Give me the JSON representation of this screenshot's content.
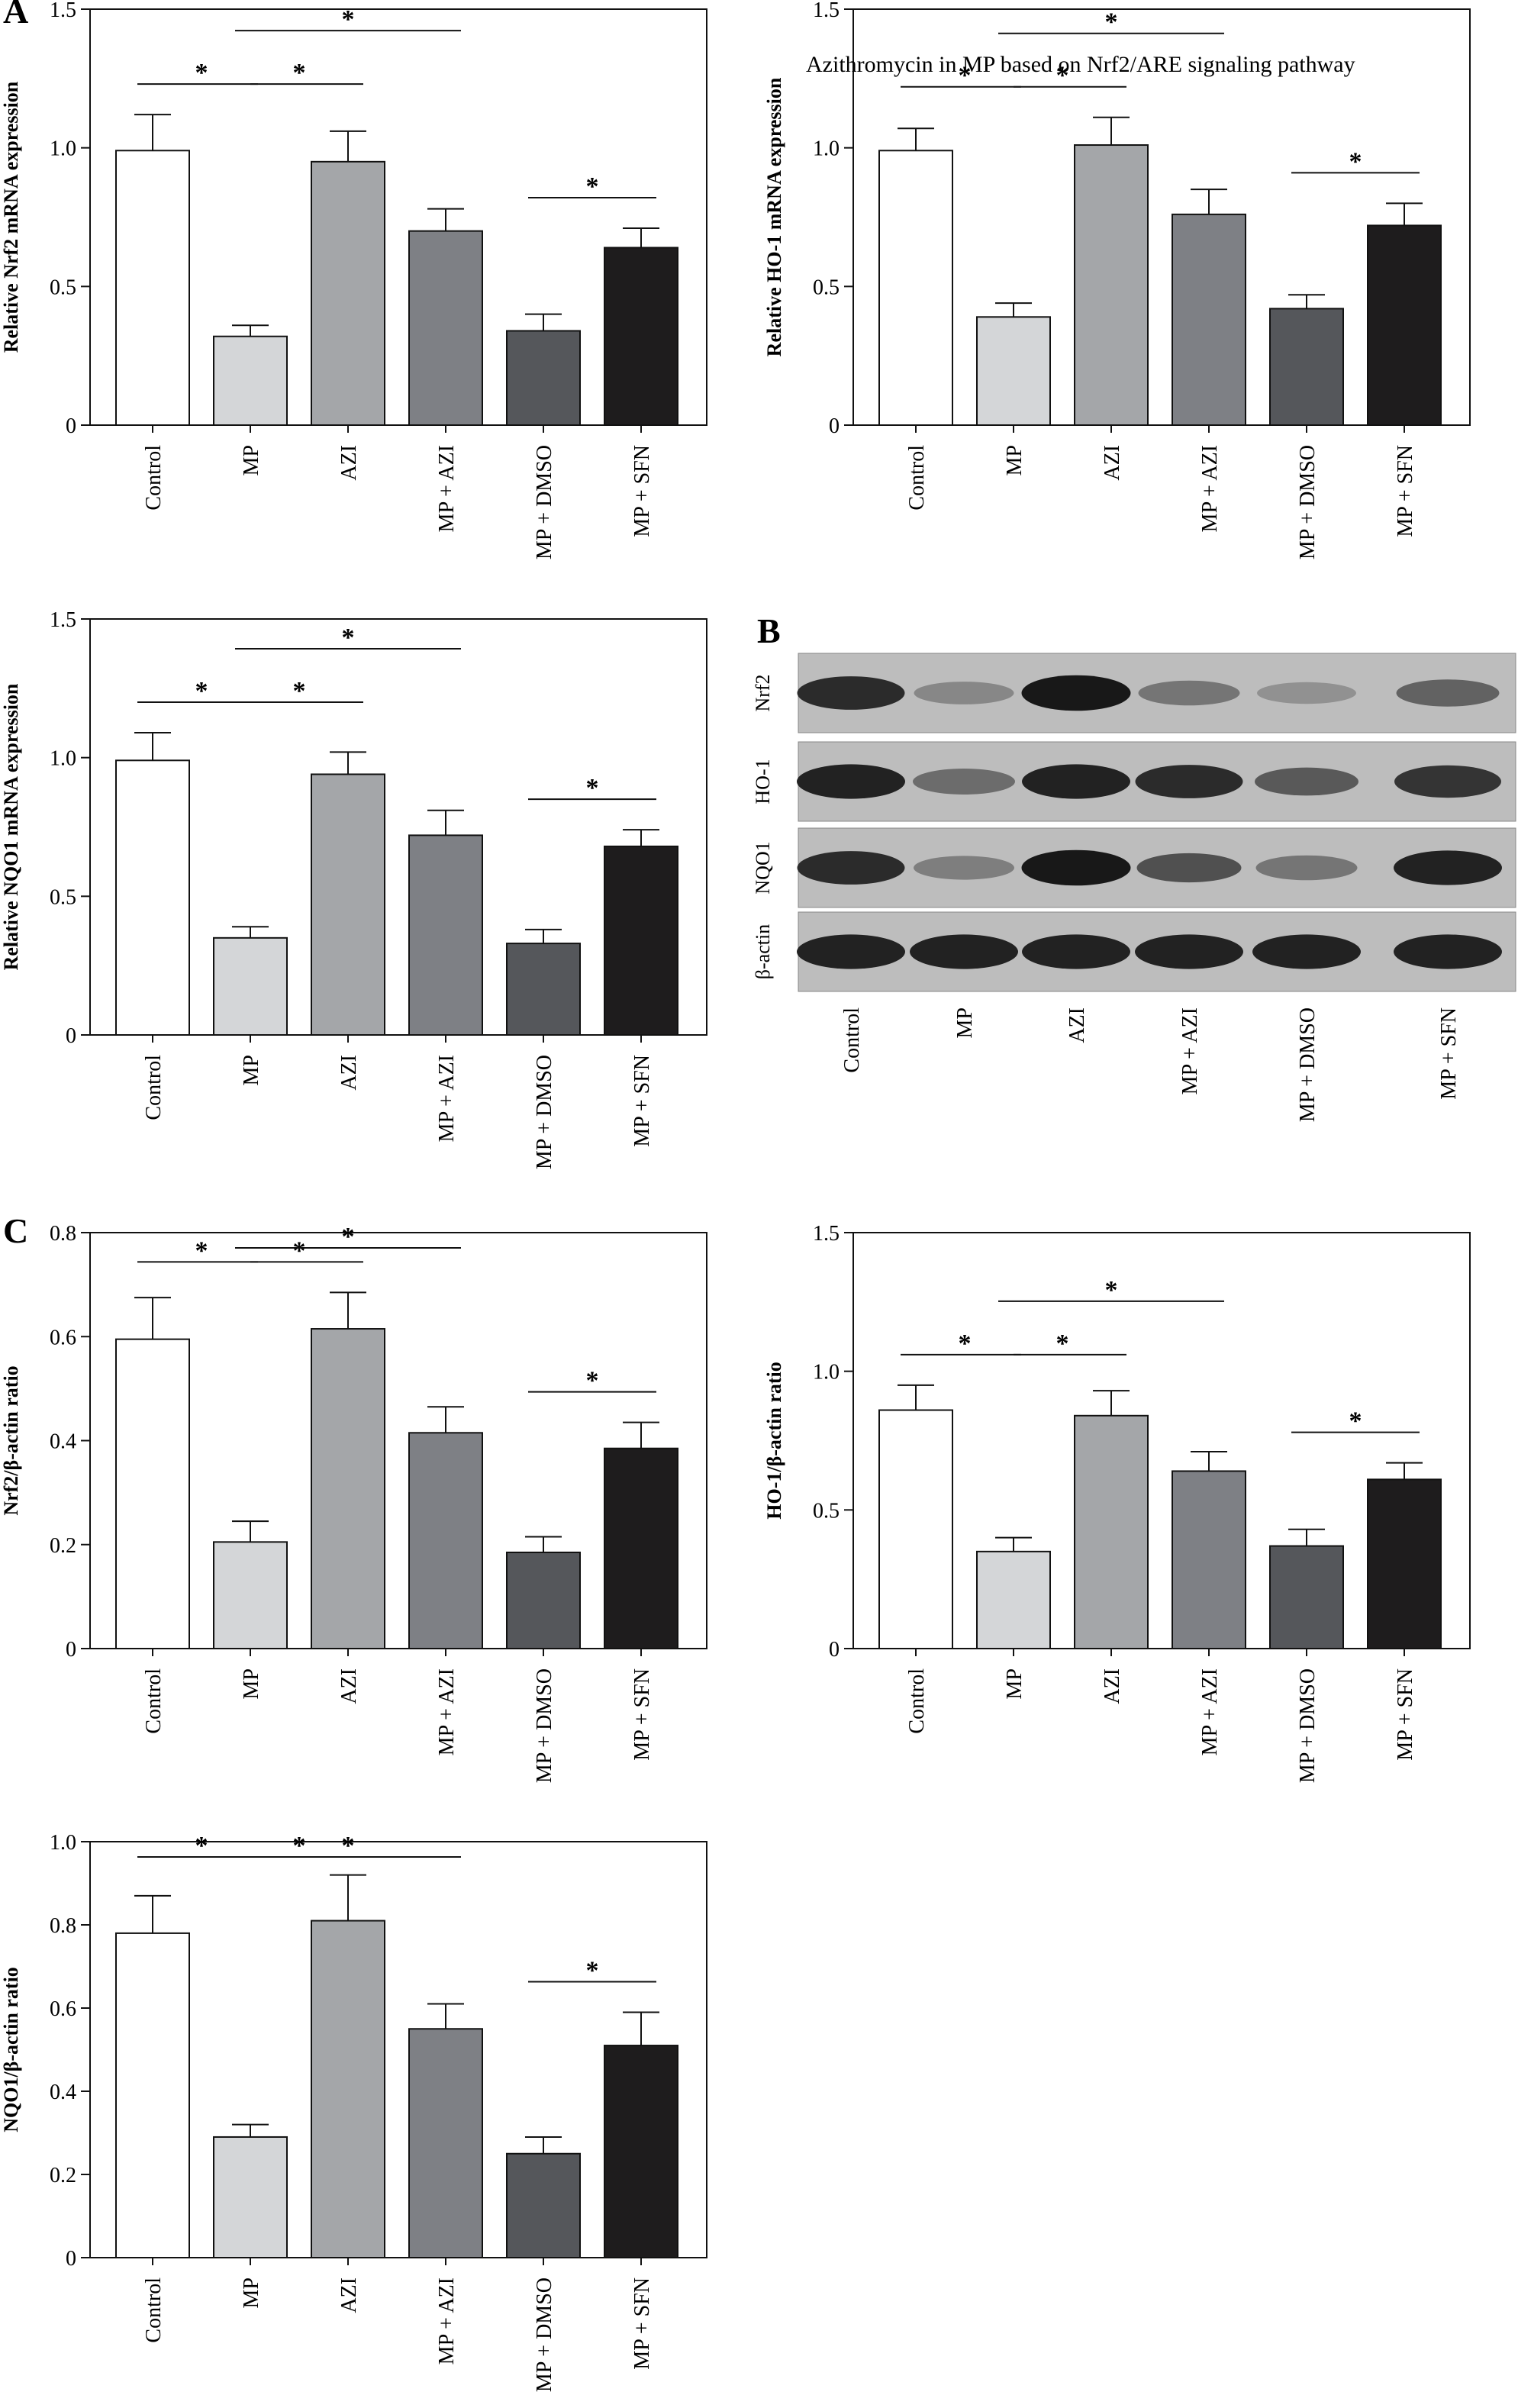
{
  "header_text": "Azithromycin in MP based on Nrf2/ARE signaling pathway",
  "panel_letters": [
    "A",
    "B",
    "C"
  ],
  "categories": [
    "Control",
    "MP",
    "AZI",
    "MP + AZI",
    "MP + DMSO",
    "MP + SFN"
  ],
  "bar_colors": [
    "#ffffff",
    "#d4d6d8",
    "#a4a6a9",
    "#7e8085",
    "#55575b",
    "#1e1c1d"
  ],
  "significance_marker": "*",
  "chart_data": [
    {
      "type": "bar",
      "panel": "A",
      "ylabel": "Relative Nrf2 mRNA expression",
      "ylim": [
        0,
        1.5
      ],
      "yticks": [
        "0",
        "0.5",
        "1.0",
        "1.5"
      ],
      "categories": [
        "Control",
        "MP",
        "AZI",
        "MP + AZI",
        "MP + DMSO",
        "MP + SFN"
      ],
      "values": [
        0.99,
        0.32,
        0.95,
        0.7,
        0.34,
        0.64
      ],
      "errors": [
        0.13,
        0.04,
        0.11,
        0.08,
        0.06,
        0.07
      ],
      "comparisons": [
        {
          "groups": [
            "Control",
            "MP"
          ],
          "label": "*"
        },
        {
          "groups": [
            "MP",
            "AZI"
          ],
          "label": "*"
        },
        {
          "groups": [
            "MP",
            "MP + AZI"
          ],
          "label": "*"
        },
        {
          "groups": [
            "MP + DMSO",
            "MP + SFN"
          ],
          "label": "*"
        }
      ]
    },
    {
      "type": "bar",
      "panel": "A",
      "ylabel": "Relative HO-1 mRNA expression",
      "ylim": [
        0,
        1.5
      ],
      "yticks": [
        "0",
        "0.5",
        "1.0",
        "1.5"
      ],
      "categories": [
        "Control",
        "MP",
        "AZI",
        "MP + AZI",
        "MP + DMSO",
        "MP + SFN"
      ],
      "values": [
        0.99,
        0.39,
        1.01,
        0.76,
        0.42,
        0.72
      ],
      "errors": [
        0.08,
        0.05,
        0.1,
        0.09,
        0.05,
        0.08
      ],
      "comparisons": [
        {
          "groups": [
            "Control",
            "MP"
          ],
          "label": "*"
        },
        {
          "groups": [
            "MP",
            "AZI"
          ],
          "label": "*"
        },
        {
          "groups": [
            "MP",
            "MP + AZI"
          ],
          "label": "*"
        },
        {
          "groups": [
            "MP + DMSO",
            "MP + SFN"
          ],
          "label": "*"
        }
      ]
    },
    {
      "type": "bar",
      "panel": "A",
      "ylabel": "Relative NQO1 mRNA expression",
      "ylim": [
        0,
        1.5
      ],
      "yticks": [
        "0",
        "0.5",
        "1.0",
        "1.5"
      ],
      "categories": [
        "Control",
        "MP",
        "AZI",
        "MP + AZI",
        "MP + DMSO",
        "MP + SFN"
      ],
      "values": [
        0.99,
        0.35,
        0.94,
        0.72,
        0.33,
        0.68
      ],
      "errors": [
        0.1,
        0.04,
        0.08,
        0.09,
        0.05,
        0.06
      ],
      "comparisons": [
        {
          "groups": [
            "Control",
            "MP"
          ],
          "label": "*"
        },
        {
          "groups": [
            "MP",
            "AZI"
          ],
          "label": "*"
        },
        {
          "groups": [
            "MP",
            "MP + AZI"
          ],
          "label": "*"
        },
        {
          "groups": [
            "MP + DMSO",
            "MP + SFN"
          ],
          "label": "*"
        }
      ]
    },
    {
      "type": "bar",
      "panel": "C",
      "ylabel": "Nrf2/β-actin ratio",
      "ylim": [
        0,
        0.8
      ],
      "yticks": [
        "0",
        "0.2",
        "0.4",
        "0.6",
        "0.8"
      ],
      "categories": [
        "Control",
        "MP",
        "AZI",
        "MP + AZI",
        "MP + DMSO",
        "MP + SFN"
      ],
      "values": [
        0.595,
        0.205,
        0.615,
        0.415,
        0.185,
        0.385
      ],
      "errors": [
        0.08,
        0.04,
        0.07,
        0.05,
        0.03,
        0.05
      ],
      "comparisons": [
        {
          "groups": [
            "Control",
            "MP"
          ],
          "label": "*"
        },
        {
          "groups": [
            "MP",
            "AZI"
          ],
          "label": "*"
        },
        {
          "groups": [
            "MP",
            "MP + AZI"
          ],
          "label": "*"
        },
        {
          "groups": [
            "MP + DMSO",
            "MP + SFN"
          ],
          "label": "*"
        }
      ]
    },
    {
      "type": "bar",
      "panel": "C",
      "ylabel": "HO-1/β-actin ratio",
      "ylim": [
        0,
        1.5
      ],
      "yticks": [
        "0",
        "0.5",
        "1.0",
        "1.5"
      ],
      "categories": [
        "Control",
        "MP",
        "AZI",
        "MP + AZI",
        "MP + DMSO",
        "MP + SFN"
      ],
      "values": [
        0.86,
        0.35,
        0.84,
        0.64,
        0.37,
        0.61
      ],
      "errors": [
        0.09,
        0.05,
        0.09,
        0.07,
        0.06,
        0.06
      ],
      "comparisons": [
        {
          "groups": [
            "Control",
            "MP"
          ],
          "label": "*"
        },
        {
          "groups": [
            "MP",
            "AZI"
          ],
          "label": "*"
        },
        {
          "groups": [
            "MP",
            "MP + AZI"
          ],
          "label": "*"
        },
        {
          "groups": [
            "MP + DMSO",
            "MP + SFN"
          ],
          "label": "*"
        }
      ]
    },
    {
      "type": "bar",
      "panel": "C",
      "ylabel": "NQO1/β-actin ratio",
      "ylim": [
        0,
        1.0
      ],
      "yticks": [
        "0",
        "0.2",
        "0.4",
        "0.6",
        "0.8",
        "1.0"
      ],
      "categories": [
        "Control",
        "MP",
        "AZI",
        "MP + AZI",
        "MP + DMSO",
        "MP + SFN"
      ],
      "values": [
        0.78,
        0.29,
        0.81,
        0.55,
        0.25,
        0.51
      ],
      "errors": [
        0.09,
        0.03,
        0.11,
        0.06,
        0.04,
        0.08
      ],
      "comparisons": [
        {
          "groups": [
            "Control",
            "MP"
          ],
          "label": "*"
        },
        {
          "groups": [
            "MP",
            "AZI"
          ],
          "label": "*"
        },
        {
          "groups": [
            "MP",
            "MP + AZI"
          ],
          "label": "*"
        },
        {
          "groups": [
            "MP + DMSO",
            "MP + SFN"
          ],
          "label": "*"
        }
      ]
    }
  ],
  "western_blot": {
    "rows": [
      {
        "label": "Nrf2",
        "intensities": [
          0.85,
          0.35,
          0.95,
          0.45,
          0.3,
          0.55
        ]
      },
      {
        "label": "HO-1",
        "intensities": [
          0.9,
          0.5,
          0.9,
          0.85,
          0.6,
          0.8
        ]
      },
      {
        "label": "NQO1",
        "intensities": [
          0.85,
          0.4,
          0.95,
          0.65,
          0.45,
          0.9
        ]
      },
      {
        "label": "β-actin",
        "intensities": [
          0.9,
          0.9,
          0.9,
          0.9,
          0.9,
          0.9
        ]
      }
    ],
    "lanes": [
      "Control",
      "MP",
      "AZI",
      "MP + AZI",
      "MP + DMSO",
      "MP + SFN"
    ]
  }
}
